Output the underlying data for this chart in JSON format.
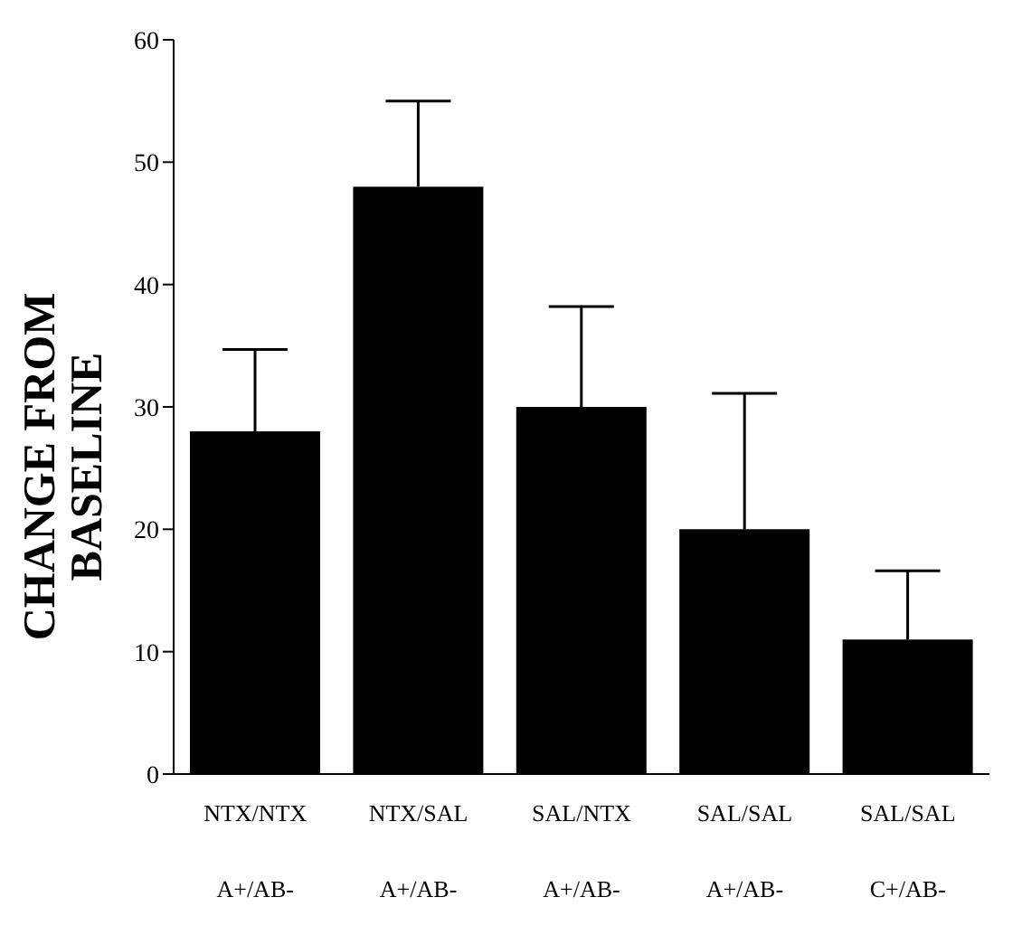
{
  "chart_data": {
    "type": "bar",
    "ylabel": "CHANGE FROM BASELINE",
    "categories": [
      "NTX/NTX\nA+/AB-",
      "NTX/SAL\nA+/AB-",
      "SAL/NTX\nA+/AB-",
      "SAL/SAL\nA+/AB-",
      "SAL/SAL\nC+/AB-"
    ],
    "values": [
      28,
      48,
      30,
      20,
      11
    ],
    "errors": [
      [
        28,
        34.7
      ],
      [
        48,
        55
      ],
      [
        30,
        38.2
      ],
      [
        20,
        31.1
      ],
      [
        11,
        16.6
      ]
    ],
    "color": "#000000",
    "ylim": [
      0,
      60
    ],
    "yticks": [
      0,
      10,
      20,
      30,
      40,
      50,
      60
    ],
    "grid": false,
    "legend": false
  }
}
